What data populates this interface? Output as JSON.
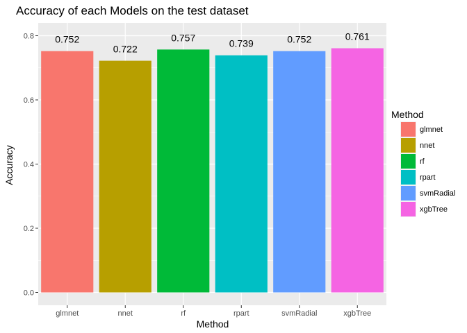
{
  "chart_data": {
    "type": "bar",
    "title": "Accuracy of each Models on the test dataset",
    "xlabel": "Method",
    "ylabel": "Accuracy",
    "ylim": [
      0,
      0.8
    ],
    "yticks": [
      "0.0",
      "0.2",
      "0.4",
      "0.6",
      "0.8"
    ],
    "categories": [
      "glmnet",
      "nnet",
      "rf",
      "rpart",
      "svmRadial",
      "xgbTree"
    ],
    "values": [
      0.752,
      0.722,
      0.757,
      0.739,
      0.752,
      0.761
    ],
    "data_labels": [
      "0.752",
      "0.722",
      "0.757",
      "0.739",
      "0.752",
      "0.761"
    ],
    "colors": [
      "#F8766D",
      "#B79F00",
      "#00BA38",
      "#00BFC4",
      "#619CFF",
      "#F564E3"
    ],
    "grid": true,
    "panel_background": "#EBEBEB",
    "legend": {
      "title": "Method",
      "placement": "right",
      "entries": [
        "glmnet",
        "nnet",
        "rf",
        "rpart",
        "svmRadial",
        "xgbTree"
      ]
    }
  }
}
